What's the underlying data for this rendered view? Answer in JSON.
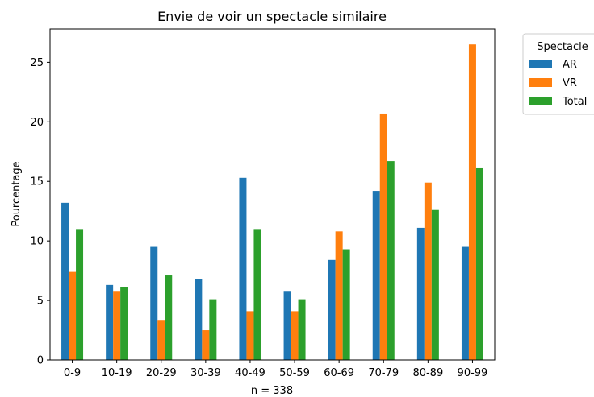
{
  "chart_data": {
    "type": "bar",
    "title": "Envie de voir un spectacle similaire",
    "xlabel": "n = 338",
    "ylabel": "Pourcentage",
    "categories": [
      "0-9",
      "10-19",
      "20-29",
      "30-39",
      "40-49",
      "50-59",
      "60-69",
      "70-79",
      "80-89",
      "90-99"
    ],
    "series": [
      {
        "name": "AR",
        "color": "#1f77b4",
        "values": [
          13.2,
          6.3,
          9.5,
          6.8,
          15.3,
          5.8,
          8.4,
          14.2,
          11.1,
          9.5
        ]
      },
      {
        "name": "VR",
        "color": "#ff7f0e",
        "values": [
          7.4,
          5.8,
          3.3,
          2.5,
          4.1,
          4.1,
          10.8,
          20.7,
          14.9,
          26.5
        ]
      },
      {
        "name": "Total",
        "color": "#2ca02c",
        "values": [
          11.0,
          6.1,
          7.1,
          5.1,
          11.0,
          5.1,
          9.3,
          16.7,
          12.6,
          16.1
        ]
      }
    ],
    "yticks": [
      0,
      5,
      10,
      15,
      20,
      25
    ],
    "ylim": [
      0,
      27.8
    ],
    "grid": false,
    "legend": {
      "title": "Spectacle",
      "placement": "outside-top-right"
    }
  }
}
